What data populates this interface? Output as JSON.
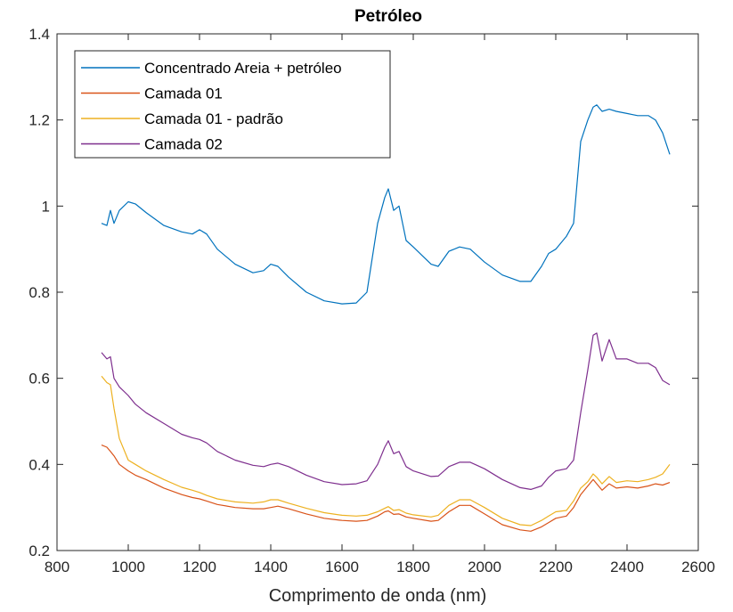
{
  "chart_data": {
    "type": "line",
    "title": "Petróleo",
    "xlabel": "Comprimento de onda (nm)",
    "ylabel": "",
    "xlim": [
      800,
      2600
    ],
    "ylim": [
      0.2,
      1.4
    ],
    "xticks": [
      800,
      1000,
      1200,
      1400,
      1600,
      1800,
      2000,
      2200,
      2400,
      2600
    ],
    "yticks": [
      0.2,
      0.4,
      0.6,
      0.8,
      1,
      1.2,
      1.4
    ],
    "grid": false,
    "legend_position": "top-left",
    "x": [
      925,
      940,
      950,
      960,
      975,
      1000,
      1020,
      1050,
      1100,
      1150,
      1180,
      1200,
      1220,
      1250,
      1300,
      1350,
      1380,
      1400,
      1420,
      1450,
      1500,
      1550,
      1600,
      1640,
      1670,
      1700,
      1720,
      1730,
      1745,
      1760,
      1780,
      1800,
      1850,
      1870,
      1900,
      1930,
      1960,
      2000,
      2050,
      2100,
      2130,
      2160,
      2180,
      2200,
      2230,
      2250,
      2270,
      2290,
      2305,
      2315,
      2330,
      2350,
      2370,
      2400,
      2430,
      2460,
      2480,
      2500,
      2520
    ],
    "series": [
      {
        "name": "Concentrado Areia + petróleo",
        "color": "#0072BD",
        "values": [
          0.96,
          0.955,
          0.99,
          0.96,
          0.99,
          1.01,
          1.005,
          0.985,
          0.955,
          0.94,
          0.935,
          0.945,
          0.935,
          0.9,
          0.865,
          0.845,
          0.85,
          0.865,
          0.86,
          0.835,
          0.8,
          0.78,
          0.773,
          0.775,
          0.8,
          0.96,
          1.02,
          1.04,
          0.99,
          1.0,
          0.92,
          0.905,
          0.865,
          0.86,
          0.895,
          0.905,
          0.9,
          0.87,
          0.84,
          0.825,
          0.825,
          0.86,
          0.89,
          0.9,
          0.93,
          0.96,
          1.15,
          1.2,
          1.23,
          1.235,
          1.22,
          1.225,
          1.22,
          1.215,
          1.21,
          1.21,
          1.2,
          1.17,
          1.12
        ]
      },
      {
        "name": "Camada 01",
        "color": "#D95319",
        "values": [
          0.445,
          0.44,
          0.43,
          0.42,
          0.4,
          0.385,
          0.375,
          0.365,
          0.345,
          0.33,
          0.323,
          0.32,
          0.315,
          0.307,
          0.3,
          0.297,
          0.297,
          0.3,
          0.303,
          0.297,
          0.285,
          0.275,
          0.27,
          0.268,
          0.27,
          0.28,
          0.29,
          0.292,
          0.284,
          0.285,
          0.278,
          0.275,
          0.268,
          0.27,
          0.29,
          0.305,
          0.305,
          0.285,
          0.26,
          0.248,
          0.245,
          0.255,
          0.265,
          0.275,
          0.28,
          0.3,
          0.33,
          0.35,
          0.365,
          0.355,
          0.34,
          0.355,
          0.345,
          0.348,
          0.345,
          0.35,
          0.355,
          0.352,
          0.358
        ]
      },
      {
        "name": "Camada 01 - padrão",
        "color": "#EDB120",
        "values": [
          0.605,
          0.59,
          0.585,
          0.53,
          0.46,
          0.41,
          0.4,
          0.385,
          0.365,
          0.347,
          0.34,
          0.335,
          0.328,
          0.32,
          0.313,
          0.31,
          0.313,
          0.318,
          0.318,
          0.31,
          0.298,
          0.288,
          0.282,
          0.28,
          0.282,
          0.29,
          0.298,
          0.302,
          0.293,
          0.295,
          0.287,
          0.283,
          0.278,
          0.282,
          0.305,
          0.318,
          0.318,
          0.3,
          0.275,
          0.26,
          0.258,
          0.27,
          0.28,
          0.29,
          0.293,
          0.315,
          0.345,
          0.36,
          0.378,
          0.37,
          0.355,
          0.372,
          0.358,
          0.362,
          0.36,
          0.365,
          0.37,
          0.378,
          0.4
        ]
      },
      {
        "name": "Camada 02",
        "color": "#7E2F8E",
        "values": [
          0.66,
          0.645,
          0.65,
          0.6,
          0.58,
          0.56,
          0.54,
          0.52,
          0.495,
          0.47,
          0.462,
          0.458,
          0.45,
          0.43,
          0.41,
          0.398,
          0.395,
          0.4,
          0.403,
          0.395,
          0.375,
          0.36,
          0.353,
          0.355,
          0.362,
          0.4,
          0.44,
          0.455,
          0.425,
          0.43,
          0.395,
          0.385,
          0.372,
          0.373,
          0.395,
          0.405,
          0.405,
          0.39,
          0.365,
          0.346,
          0.342,
          0.35,
          0.37,
          0.385,
          0.39,
          0.41,
          0.52,
          0.62,
          0.7,
          0.705,
          0.64,
          0.69,
          0.645,
          0.645,
          0.635,
          0.635,
          0.625,
          0.595,
          0.585
        ]
      }
    ]
  }
}
